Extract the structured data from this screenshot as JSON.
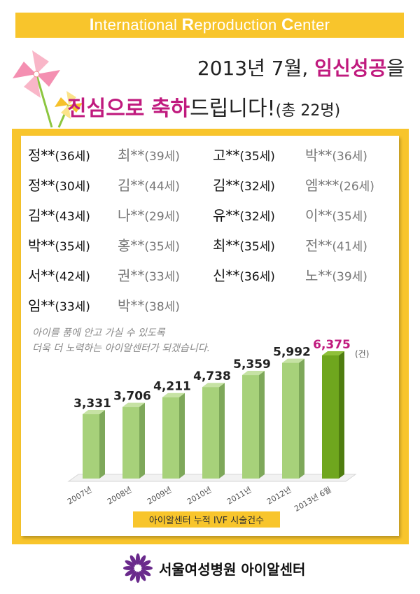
{
  "header": {
    "banner": [
      {
        "cap": "I",
        "rest": "nternational "
      },
      {
        "cap": "R",
        "rest": "eproduction "
      },
      {
        "cap": "C",
        "rest": "enter"
      }
    ],
    "headline_line1_prefix": "2013년 7월, ",
    "headline_line1_highlight": "임신성공",
    "headline_line1_suffix": "을",
    "headline_line2_highlight1": "진심으로",
    "headline_line2_space": " ",
    "headline_line2_highlight2": "축하",
    "headline_line2_suffix": "드립니다!",
    "headline_line2_count": "(총 22명)"
  },
  "patients": [
    {
      "name": "정**",
      "age": "(36세)",
      "style": "dark"
    },
    {
      "name": "최**",
      "age": "(39세)",
      "style": "light"
    },
    {
      "name": "고**",
      "age": "(35세)",
      "style": "dark"
    },
    {
      "name": "박**",
      "age": "(36세)",
      "style": "light"
    },
    {
      "name": "정**",
      "age": "(30세)",
      "style": "dark"
    },
    {
      "name": "김**",
      "age": "(44세)",
      "style": "light"
    },
    {
      "name": "김**",
      "age": "(32세)",
      "style": "dark"
    },
    {
      "name": "엠***",
      "age": "(26세)",
      "style": "light"
    },
    {
      "name": "김**",
      "age": "(43세)",
      "style": "dark"
    },
    {
      "name": "나**",
      "age": "(29세)",
      "style": "light"
    },
    {
      "name": "유**",
      "age": "(32세)",
      "style": "dark"
    },
    {
      "name": "이**",
      "age": "(35세)",
      "style": "light"
    },
    {
      "name": "박**",
      "age": "(35세)",
      "style": "dark"
    },
    {
      "name": "홍**",
      "age": "(35세)",
      "style": "light"
    },
    {
      "name": "최**",
      "age": "(35세)",
      "style": "dark"
    },
    {
      "name": "전**",
      "age": "(41세)",
      "style": "light"
    },
    {
      "name": "서**",
      "age": "(42세)",
      "style": "dark"
    },
    {
      "name": "권**",
      "age": "(33세)",
      "style": "light"
    },
    {
      "name": "신**",
      "age": "(36세)",
      "style": "dark"
    },
    {
      "name": "노**",
      "age": "(39세)",
      "style": "light"
    },
    {
      "name": "임**",
      "age": "(33세)",
      "style": "dark"
    },
    {
      "name": "박**",
      "age": "(38세)",
      "style": "light"
    }
  ],
  "message": {
    "line1": "아이를 품에 안고 가실 수 있도록",
    "line2": "더욱 더 노력하는 아이알센터가 되겠습니다."
  },
  "chart_data": {
    "type": "bar",
    "categories": [
      "2007년",
      "2008년",
      "2009년",
      "2010년",
      "2011년",
      "2012년",
      "2013년 6월"
    ],
    "values": [
      3331,
      3706,
      4211,
      4738,
      5359,
      5992,
      6375
    ],
    "value_labels": [
      "3,331",
      "3,706",
      "4,211",
      "4,738",
      "5,359",
      "5,992",
      "6,375"
    ],
    "unit": "(건)",
    "caption": "아이알센터 누적 IVF 시술건수",
    "highlight_index": 6,
    "colors": {
      "bar": "#a7d17a",
      "bar_side": "#7ea85a",
      "highlight": "#6fa61e",
      "highlight_side": "#4f7d10",
      "highlight_label": "#c01a7e"
    }
  },
  "footer": {
    "hospital": "서울여성병원 아이알센터"
  },
  "colors": {
    "accent_yellow": "#f8c52c",
    "accent_magenta": "#c01a7e"
  }
}
